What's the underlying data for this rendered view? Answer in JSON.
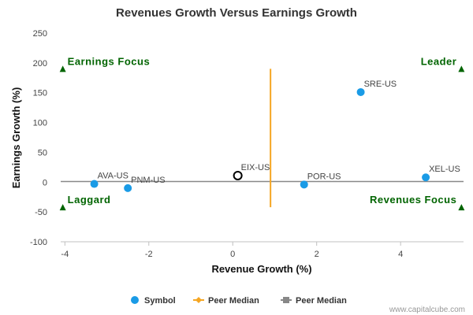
{
  "colors": {
    "symbol": "#1a9be6",
    "peer_median_revenue": "#f5a623",
    "peer_median_earnings": "#888888",
    "quadrant": "#006400",
    "zero_line": "#888888",
    "highlight_stroke": "#000000"
  },
  "watermark": "www.capitalcube.com",
  "chart_data": {
    "type": "scatter",
    "title": "Revenues Growth Versus Earnings Growth",
    "xlabel": "Revenue Growth (%)",
    "ylabel": "Earnings Growth (%)",
    "xlim": [
      -4.1,
      5.5
    ],
    "ylim": [
      -100,
      250
    ],
    "xticks": [
      -4,
      -2,
      0,
      2,
      4
    ],
    "yticks": [
      -100,
      -50,
      0,
      50,
      100,
      150,
      200,
      250
    ],
    "points": [
      {
        "label": "SRE-US",
        "x": 3.05,
        "y": 151,
        "highlight": false
      },
      {
        "label": "XEL-US",
        "x": 4.6,
        "y": 8,
        "highlight": false
      },
      {
        "label": "POR-US",
        "x": 1.7,
        "y": -4,
        "highlight": false
      },
      {
        "label": "AVA-US",
        "x": -3.3,
        "y": -3,
        "highlight": false
      },
      {
        "label": "PNM-US",
        "x": -2.5,
        "y": -10,
        "highlight": false
      },
      {
        "label": "EIX-US",
        "x": 0.12,
        "y": 11,
        "highlight": true
      }
    ],
    "peer_median_revenue_x": 0.9,
    "peer_median_revenue_y_range": [
      -42,
      190
    ],
    "peer_median_earnings_y": 1,
    "quadrants": [
      {
        "label": "Earnings Focus",
        "x": -4.05,
        "y": 190,
        "side": "left"
      },
      {
        "label": "Leader",
        "x": 5.45,
        "y": 190,
        "side": "right"
      },
      {
        "label": "Laggard",
        "x": -4.05,
        "y": -42,
        "side": "left"
      },
      {
        "label": "Revenues Focus",
        "x": 5.45,
        "y": -42,
        "side": "right"
      }
    ],
    "legend": [
      {
        "label": "Symbol",
        "marker": "circle"
      },
      {
        "label": "Peer Median",
        "marker": "diamond-line"
      },
      {
        "label": "Peer Median",
        "marker": "square-line"
      }
    ],
    "legend_position": "bottom",
    "grid": false
  }
}
